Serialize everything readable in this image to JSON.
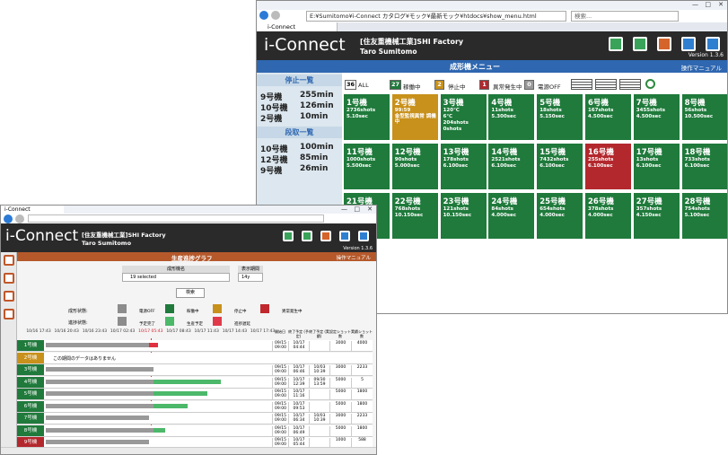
{
  "back_window": {
    "address": "E:¥Sumitomo¥i-Connect カタログ¥モック¥最新モック¥htdocs¥show_menu.html",
    "search": "検索...",
    "tab": "i-Connect",
    "header": {
      "logo": "i-Connect",
      "factory": "[住友重機械工業]SHI Factory",
      "user": "Taro Sumitomo",
      "version": "Version 1.3.6"
    },
    "title": "成形機メニュー",
    "manual": "操作マニュアル",
    "stop_list": {
      "title": "停止一覧",
      "rows": [
        [
          "9号機",
          "255min"
        ],
        [
          "10号機",
          "126min"
        ],
        [
          "2号機",
          "10min"
        ]
      ]
    },
    "setup_list": {
      "title": "段取一覧",
      "rows": [
        [
          "10号機",
          "100min"
        ],
        [
          "12号機",
          "85min"
        ],
        [
          "9号機",
          "26min"
        ]
      ]
    },
    "filters": [
      {
        "count": 36,
        "label": "ALL",
        "color": "#ffffff"
      },
      {
        "count": 27,
        "label": "稼働中",
        "color": "#1f7a3b"
      },
      {
        "count": 2,
        "label": "停止中",
        "color": "#c8911b"
      },
      {
        "count": 1,
        "label": "異常発生中",
        "color": "#b3282d"
      },
      {
        "count": 0,
        "label": "電源OFF",
        "color": "#9a9a9a"
      }
    ],
    "status_colors": {
      "running": "#1f7a3b",
      "stopped": "#c8911b",
      "alarm": "#b3282d"
    },
    "machines": [
      {
        "name": "1号機",
        "status": "running",
        "lines": [
          "2736shots",
          "5.10sec"
        ]
      },
      {
        "name": "2号機",
        "status": "stopped",
        "lines": [
          "99:59",
          "金型監視異常 調機中"
        ]
      },
      {
        "name": "3号機",
        "status": "running",
        "lines": [
          "120℃",
          "6℃",
          "204shots",
          "0shots"
        ]
      },
      {
        "name": "4号機",
        "status": "running",
        "lines": [
          "11shots",
          "5.300sec"
        ]
      },
      {
        "name": "5号機",
        "status": "running",
        "lines": [
          "18shots",
          "5.150sec"
        ]
      },
      {
        "name": "6号機",
        "status": "running",
        "lines": [
          "167shots",
          "4.500sec"
        ]
      },
      {
        "name": "7号機",
        "status": "running",
        "lines": [
          "3455shots",
          "4.500sec"
        ]
      },
      {
        "name": "8号機",
        "status": "running",
        "lines": [
          "56shots",
          "10.500sec"
        ]
      },
      {
        "name": "11号機",
        "status": "running",
        "lines": [
          "1000shots",
          "5.500sec"
        ]
      },
      {
        "name": "12号機",
        "status": "running",
        "lines": [
          "90shots",
          "5.000sec"
        ]
      },
      {
        "name": "13号機",
        "status": "running",
        "lines": [
          "178shots",
          "6.100sec"
        ]
      },
      {
        "name": "14号機",
        "status": "running",
        "lines": [
          "2521shots",
          "6.100sec"
        ]
      },
      {
        "name": "15号機",
        "status": "running",
        "lines": [
          "7432shots",
          "6.100sec"
        ]
      },
      {
        "name": "16号機",
        "status": "alarm",
        "lines": [
          "255shots",
          "6.100sec"
        ]
      },
      {
        "name": "17号機",
        "status": "running",
        "lines": [
          "13shots",
          "6.100sec"
        ]
      },
      {
        "name": "18号機",
        "status": "running",
        "lines": [
          "733shots",
          "6.100sec"
        ]
      },
      {
        "name": "21号機",
        "status": "running",
        "lines": []
      },
      {
        "name": "22号機",
        "status": "running",
        "lines": [
          "768shots",
          "10.150sec"
        ]
      },
      {
        "name": "23号機",
        "status": "running",
        "lines": [
          "121shots",
          "10.150sec"
        ]
      },
      {
        "name": "24号機",
        "status": "running",
        "lines": [
          "84shots",
          "4.000sec"
        ]
      },
      {
        "name": "25号機",
        "status": "running",
        "lines": [
          "654shots",
          "4.000sec"
        ]
      },
      {
        "name": "26号機",
        "status": "running",
        "lines": [
          "378shots",
          "4.000sec"
        ]
      },
      {
        "name": "27号機",
        "status": "running",
        "lines": [
          "357shots",
          "4.150sec"
        ]
      },
      {
        "name": "28号機",
        "status": "running",
        "lines": [
          "754shots",
          "5.100sec"
        ]
      }
    ]
  },
  "front_window": {
    "tab": "i-Connect",
    "header": {
      "logo": "i-Connect",
      "factory": "[住友重機械工業]SHI Factory",
      "user": "Taro Sumitomo",
      "version": "Version 1.3.6"
    },
    "title": "生産進捗グラフ",
    "manual": "操作マニュアル",
    "form": {
      "machine_label": "成形機名",
      "machine_value": "19 selected",
      "period_label": "表示期間",
      "period_value": "14y",
      "search": "検索"
    },
    "legend": {
      "state_label": "成形状態:",
      "states": [
        {
          "label": "電源OFF",
          "color": "#8c8c8c"
        },
        {
          "label": "稼働中",
          "color": "#1f7a3b"
        },
        {
          "label": "停止中",
          "color": "#c8911b"
        },
        {
          "label": "異常発生中",
          "color": "#c0282d"
        }
      ],
      "progress_label": "進捗状態:",
      "progress": [
        {
          "label": "予定完了",
          "color": "#8c8c8c"
        },
        {
          "label": "生産予定",
          "color": "#4cb86a"
        },
        {
          "label": "進捗遅延",
          "color": "#e03a4a"
        }
      ]
    },
    "times": [
      "10/16 17:43",
      "10/16 20:43",
      "10/16 23:43",
      "10/17 02:43",
      "10/17 05:43",
      "10/17 08:43",
      "10/17 11:43",
      "10/17 14:43",
      "10/17 17:43"
    ],
    "now_index": 4,
    "columns": [
      "開始日",
      "終了予定 (予定)",
      "終了予定 (実績)",
      "設定ショット数",
      "実績ショット数"
    ],
    "status_colors": {
      "running": "#1f7a3b",
      "stopped": "#c8911b",
      "alarm": "#b3282d"
    },
    "rows": [
      {
        "name": "1号機",
        "status": "running",
        "cells": [
          "09/15 09:00",
          "10/17 04:44",
          null,
          3000,
          4000
        ]
      },
      {
        "name": "2号機",
        "status": "stopped",
        "note": "この期間のデータはありません"
      },
      {
        "name": "3号機",
        "status": "running",
        "cells": [
          "09/15 09:00",
          "10/17 06:46",
          "10/03 10:39",
          3000,
          2233
        ]
      },
      {
        "name": "4号機",
        "status": "running",
        "cells": [
          "09/15 09:00",
          "10/17 12:39",
          "09/30 13:59",
          5000,
          5
        ]
      },
      {
        "name": "5号機",
        "status": "running",
        "cells": [
          "09/15 09:00",
          "10/17 11:16",
          null,
          5000,
          1800
        ]
      },
      {
        "name": "6号機",
        "status": "running",
        "cells": [
          "09/15 09:00",
          "10/17 09:53",
          null,
          5000,
          1800
        ]
      },
      {
        "name": "7号機",
        "status": "running",
        "cells": [
          "09/15 09:00",
          "10/17 06:34",
          "10/03 10:39",
          3000,
          2233
        ]
      },
      {
        "name": "8号機",
        "status": "running",
        "cells": [
          "09/15 09:00",
          "10/17 06:49",
          null,
          5000,
          1800
        ]
      },
      {
        "name": "9号機",
        "status": "alarm",
        "cells": [
          "09/15 09:00",
          "10/17 05:44",
          null,
          1000,
          588
        ]
      }
    ]
  }
}
